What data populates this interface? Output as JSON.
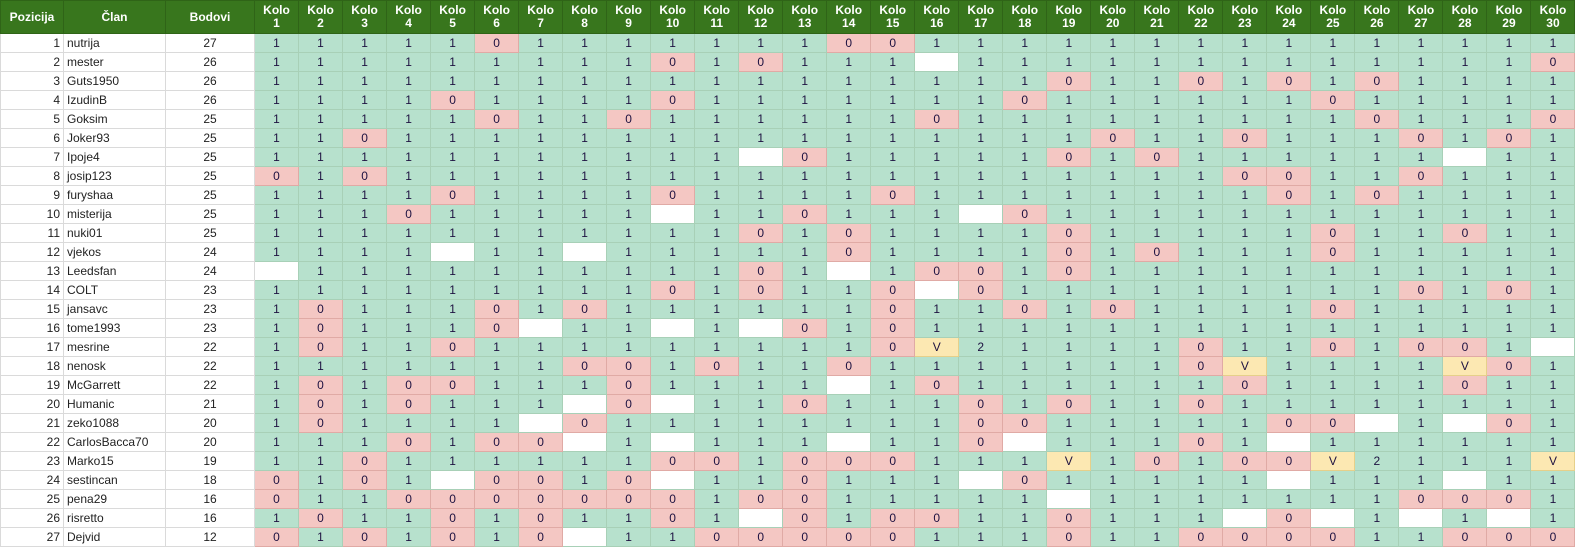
{
  "headers": {
    "position": "Pozicija",
    "member": "Član",
    "points": "Bodovi",
    "round_prefix": "Kolo"
  },
  "rounds": [
    "1",
    "2",
    "3",
    "4",
    "5",
    "6",
    "7",
    "8",
    "9",
    "10",
    "11",
    "12",
    "13",
    "14",
    "15",
    "16",
    "17",
    "18",
    "19",
    "20",
    "21",
    "22",
    "23",
    "24",
    "25",
    "26",
    "27",
    "28",
    "29",
    "30"
  ],
  "colors": {
    "header": "#38761d",
    "hit": "#b7e1cd",
    "miss": "#f4c7c3",
    "special": "#fce8b2",
    "empty": "#ffffff"
  },
  "rows": [
    {
      "pos": "1",
      "name": "nutrija",
      "points": "27",
      "r": [
        "1",
        "1",
        "1",
        "1",
        "1",
        "0",
        "1",
        "1",
        "1",
        "1",
        "1",
        "1",
        "1",
        "0",
        "0",
        "1",
        "1",
        "1",
        "1",
        "1",
        "1",
        "1",
        "1",
        "1",
        "1",
        "1",
        "1",
        "1",
        "1",
        "1"
      ]
    },
    {
      "pos": "2",
      "name": "mester",
      "points": "26",
      "r": [
        "1",
        "1",
        "1",
        "1",
        "1",
        "1",
        "1",
        "1",
        "1",
        "0",
        "1",
        "0",
        "1",
        "1",
        "1",
        "",
        "1",
        "1",
        "1",
        "1",
        "1",
        "1",
        "1",
        "1",
        "1",
        "1",
        "1",
        "1",
        "1",
        "0"
      ]
    },
    {
      "pos": "3",
      "name": "Guts1950",
      "points": "26",
      "r": [
        "1",
        "1",
        "1",
        "1",
        "1",
        "1",
        "1",
        "1",
        "1",
        "1",
        "1",
        "1",
        "1",
        "1",
        "1",
        "1",
        "1",
        "1",
        "0",
        "1",
        "1",
        "0",
        "1",
        "0",
        "1",
        "0",
        "1",
        "1",
        "1",
        "1"
      ]
    },
    {
      "pos": "4",
      "name": "IzudinB",
      "points": "26",
      "r": [
        "1",
        "1",
        "1",
        "1",
        "0",
        "1",
        "1",
        "1",
        "1",
        "0",
        "1",
        "1",
        "1",
        "1",
        "1",
        "1",
        "1",
        "0",
        "1",
        "1",
        "1",
        "1",
        "1",
        "1",
        "0",
        "1",
        "1",
        "1",
        "1",
        "1"
      ]
    },
    {
      "pos": "5",
      "name": "Goksim",
      "points": "25",
      "r": [
        "1",
        "1",
        "1",
        "1",
        "1",
        "0",
        "1",
        "1",
        "0",
        "1",
        "1",
        "1",
        "1",
        "1",
        "1",
        "0",
        "1",
        "1",
        "1",
        "1",
        "1",
        "1",
        "1",
        "1",
        "1",
        "0",
        "1",
        "1",
        "1",
        "0"
      ]
    },
    {
      "pos": "6",
      "name": "Joker93",
      "points": "25",
      "r": [
        "1",
        "1",
        "0",
        "1",
        "1",
        "1",
        "1",
        "1",
        "1",
        "1",
        "1",
        "1",
        "1",
        "1",
        "1",
        "1",
        "1",
        "1",
        "1",
        "0",
        "1",
        "1",
        "0",
        "1",
        "1",
        "1",
        "0",
        "1",
        "0",
        "1"
      ]
    },
    {
      "pos": "7",
      "name": "Ipoje4",
      "points": "25",
      "r": [
        "1",
        "1",
        "1",
        "1",
        "1",
        "1",
        "1",
        "1",
        "1",
        "1",
        "1",
        "",
        "0",
        "1",
        "1",
        "1",
        "1",
        "1",
        "0",
        "1",
        "0",
        "1",
        "1",
        "1",
        "1",
        "1",
        "1",
        "",
        "1",
        "1"
      ]
    },
    {
      "pos": "8",
      "name": "josip123",
      "points": "25",
      "r": [
        "0",
        "1",
        "0",
        "1",
        "1",
        "1",
        "1",
        "1",
        "1",
        "1",
        "1",
        "1",
        "1",
        "1",
        "1",
        "1",
        "1",
        "1",
        "1",
        "1",
        "1",
        "1",
        "0",
        "0",
        "1",
        "1",
        "0",
        "1",
        "1",
        "1"
      ]
    },
    {
      "pos": "9",
      "name": "furyshaa",
      "points": "25",
      "r": [
        "1",
        "1",
        "1",
        "1",
        "0",
        "1",
        "1",
        "1",
        "1",
        "0",
        "1",
        "1",
        "1",
        "1",
        "0",
        "1",
        "1",
        "1",
        "1",
        "1",
        "1",
        "1",
        "1",
        "0",
        "1",
        "0",
        "1",
        "1",
        "1",
        "1"
      ]
    },
    {
      "pos": "10",
      "name": "misterija",
      "points": "25",
      "r": [
        "1",
        "1",
        "1",
        "0",
        "1",
        "1",
        "1",
        "1",
        "1",
        "",
        "1",
        "1",
        "0",
        "1",
        "1",
        "1",
        "",
        "0",
        "1",
        "1",
        "1",
        "1",
        "1",
        "1",
        "1",
        "1",
        "1",
        "1",
        "1",
        "1"
      ]
    },
    {
      "pos": "11",
      "name": "nuki01",
      "points": "25",
      "r": [
        "1",
        "1",
        "1",
        "1",
        "1",
        "1",
        "1",
        "1",
        "1",
        "1",
        "1",
        "0",
        "1",
        "0",
        "1",
        "1",
        "1",
        "1",
        "0",
        "1",
        "1",
        "1",
        "1",
        "1",
        "0",
        "1",
        "1",
        "0",
        "1",
        "1"
      ]
    },
    {
      "pos": "12",
      "name": "vjekos",
      "points": "24",
      "r": [
        "1",
        "1",
        "1",
        "1",
        "",
        "1",
        "1",
        "",
        "1",
        "1",
        "1",
        "1",
        "1",
        "0",
        "1",
        "1",
        "1",
        "1",
        "0",
        "1",
        "0",
        "1",
        "1",
        "1",
        "0",
        "1",
        "1",
        "1",
        "1",
        "1"
      ]
    },
    {
      "pos": "13",
      "name": "Leedsfan",
      "points": "24",
      "r": [
        "",
        "1",
        "1",
        "1",
        "1",
        "1",
        "1",
        "1",
        "1",
        "1",
        "1",
        "0",
        "1",
        "",
        "1",
        "0",
        "0",
        "1",
        "0",
        "1",
        "1",
        "1",
        "1",
        "1",
        "1",
        "1",
        "1",
        "1",
        "1",
        "1"
      ]
    },
    {
      "pos": "14",
      "name": "COLT",
      "points": "23",
      "r": [
        "1",
        "1",
        "1",
        "1",
        "1",
        "1",
        "1",
        "1",
        "1",
        "0",
        "1",
        "0",
        "1",
        "1",
        "0",
        "",
        "0",
        "1",
        "1",
        "1",
        "1",
        "1",
        "1",
        "1",
        "1",
        "1",
        "0",
        "1",
        "0",
        "1"
      ]
    },
    {
      "pos": "15",
      "name": "jansavc",
      "points": "23",
      "r": [
        "1",
        "0",
        "1",
        "1",
        "1",
        "0",
        "1",
        "0",
        "1",
        "1",
        "1",
        "1",
        "1",
        "1",
        "0",
        "1",
        "1",
        "0",
        "1",
        "0",
        "1",
        "1",
        "1",
        "1",
        "0",
        "1",
        "1",
        "1",
        "1",
        "1"
      ]
    },
    {
      "pos": "16",
      "name": "tome1993",
      "points": "23",
      "r": [
        "1",
        "0",
        "1",
        "1",
        "1",
        "0",
        "",
        "1",
        "1",
        "",
        "1",
        "",
        "0",
        "1",
        "0",
        "1",
        "1",
        "1",
        "1",
        "1",
        "1",
        "1",
        "1",
        "1",
        "1",
        "1",
        "1",
        "1",
        "1",
        "1"
      ]
    },
    {
      "pos": "17",
      "name": "mesrine",
      "points": "22",
      "r": [
        "1",
        "0",
        "1",
        "1",
        "0",
        "1",
        "1",
        "1",
        "1",
        "1",
        "1",
        "1",
        "1",
        "1",
        "0",
        "V",
        "2",
        "1",
        "1",
        "1",
        "1",
        "0",
        "1",
        "1",
        "0",
        "1",
        "0",
        "0",
        "1",
        ""
      ]
    },
    {
      "pos": "18",
      "name": "nenosk",
      "points": "22",
      "r": [
        "1",
        "1",
        "1",
        "1",
        "1",
        "1",
        "1",
        "0",
        "0",
        "1",
        "0",
        "1",
        "1",
        "0",
        "1",
        "1",
        "1",
        "1",
        "1",
        "1",
        "1",
        "0",
        "V",
        "1",
        "1",
        "1",
        "1",
        "V",
        "0",
        "1"
      ]
    },
    {
      "pos": "19",
      "name": "McGarrett",
      "points": "22",
      "r": [
        "1",
        "0",
        "1",
        "0",
        "0",
        "1",
        "1",
        "1",
        "0",
        "1",
        "1",
        "1",
        "1",
        "",
        "1",
        "0",
        "1",
        "1",
        "1",
        "1",
        "1",
        "1",
        "0",
        "1",
        "1",
        "1",
        "1",
        "0",
        "1",
        "1"
      ]
    },
    {
      "pos": "20",
      "name": "Humanic",
      "points": "21",
      "r": [
        "1",
        "0",
        "1",
        "0",
        "1",
        "1",
        "1",
        "",
        "0",
        "",
        "1",
        "1",
        "0",
        "1",
        "1",
        "1",
        "0",
        "1",
        "0",
        "1",
        "1",
        "0",
        "1",
        "1",
        "1",
        "1",
        "1",
        "1",
        "1",
        "1"
      ]
    },
    {
      "pos": "21",
      "name": "zeko1088",
      "points": "20",
      "r": [
        "1",
        "0",
        "1",
        "1",
        "1",
        "1",
        "",
        "0",
        "1",
        "1",
        "1",
        "1",
        "1",
        "1",
        "1",
        "1",
        "0",
        "0",
        "1",
        "1",
        "1",
        "1",
        "1",
        "0",
        "0",
        "",
        "1",
        "",
        "0",
        "1"
      ]
    },
    {
      "pos": "22",
      "name": "CarlosBacca70",
      "points": "20",
      "r": [
        "1",
        "1",
        "1",
        "0",
        "1",
        "0",
        "0",
        "",
        "1",
        "",
        "1",
        "1",
        "1",
        "",
        "1",
        "1",
        "0",
        "",
        "1",
        "1",
        "1",
        "0",
        "1",
        "",
        "1",
        "1",
        "1",
        "1",
        "1",
        "1"
      ]
    },
    {
      "pos": "23",
      "name": "Marko15",
      "points": "19",
      "r": [
        "1",
        "1",
        "0",
        "1",
        "1",
        "1",
        "1",
        "1",
        "1",
        "0",
        "0",
        "1",
        "0",
        "0",
        "0",
        "1",
        "1",
        "1",
        "V",
        "1",
        "0",
        "1",
        "0",
        "0",
        "V",
        "2",
        "1",
        "1",
        "1",
        "V"
      ]
    },
    {
      "pos": "24",
      "name": "sestincan",
      "points": "18",
      "r": [
        "0",
        "1",
        "0",
        "1",
        "",
        "0",
        "0",
        "1",
        "0",
        "",
        "1",
        "1",
        "0",
        "1",
        "1",
        "1",
        "",
        "0",
        "1",
        "1",
        "1",
        "1",
        "1",
        "",
        "1",
        "1",
        "1",
        "",
        "1",
        "1"
      ]
    },
    {
      "pos": "25",
      "name": "pena29",
      "points": "16",
      "r": [
        "0",
        "1",
        "1",
        "0",
        "0",
        "0",
        "0",
        "0",
        "0",
        "0",
        "1",
        "0",
        "0",
        "1",
        "1",
        "1",
        "1",
        "1",
        "",
        "1",
        "1",
        "1",
        "1",
        "1",
        "1",
        "1",
        "0",
        "0",
        "0",
        "1"
      ]
    },
    {
      "pos": "26",
      "name": "risretto",
      "points": "16",
      "r": [
        "1",
        "0",
        "1",
        "1",
        "0",
        "1",
        "0",
        "1",
        "1",
        "0",
        "1",
        "",
        "0",
        "1",
        "0",
        "0",
        "1",
        "1",
        "0",
        "1",
        "1",
        "1",
        "",
        "0",
        "",
        "1",
        "",
        "1",
        "",
        "1"
      ]
    },
    {
      "pos": "27",
      "name": "Dejvid",
      "points": "12",
      "r": [
        "0",
        "1",
        "0",
        "1",
        "0",
        "1",
        "0",
        "",
        "1",
        "1",
        "0",
        "0",
        "0",
        "0",
        "0",
        "1",
        "1",
        "1",
        "0",
        "1",
        "1",
        "0",
        "0",
        "0",
        "0",
        "1",
        "1",
        "0",
        "0",
        "0"
      ]
    }
  ]
}
